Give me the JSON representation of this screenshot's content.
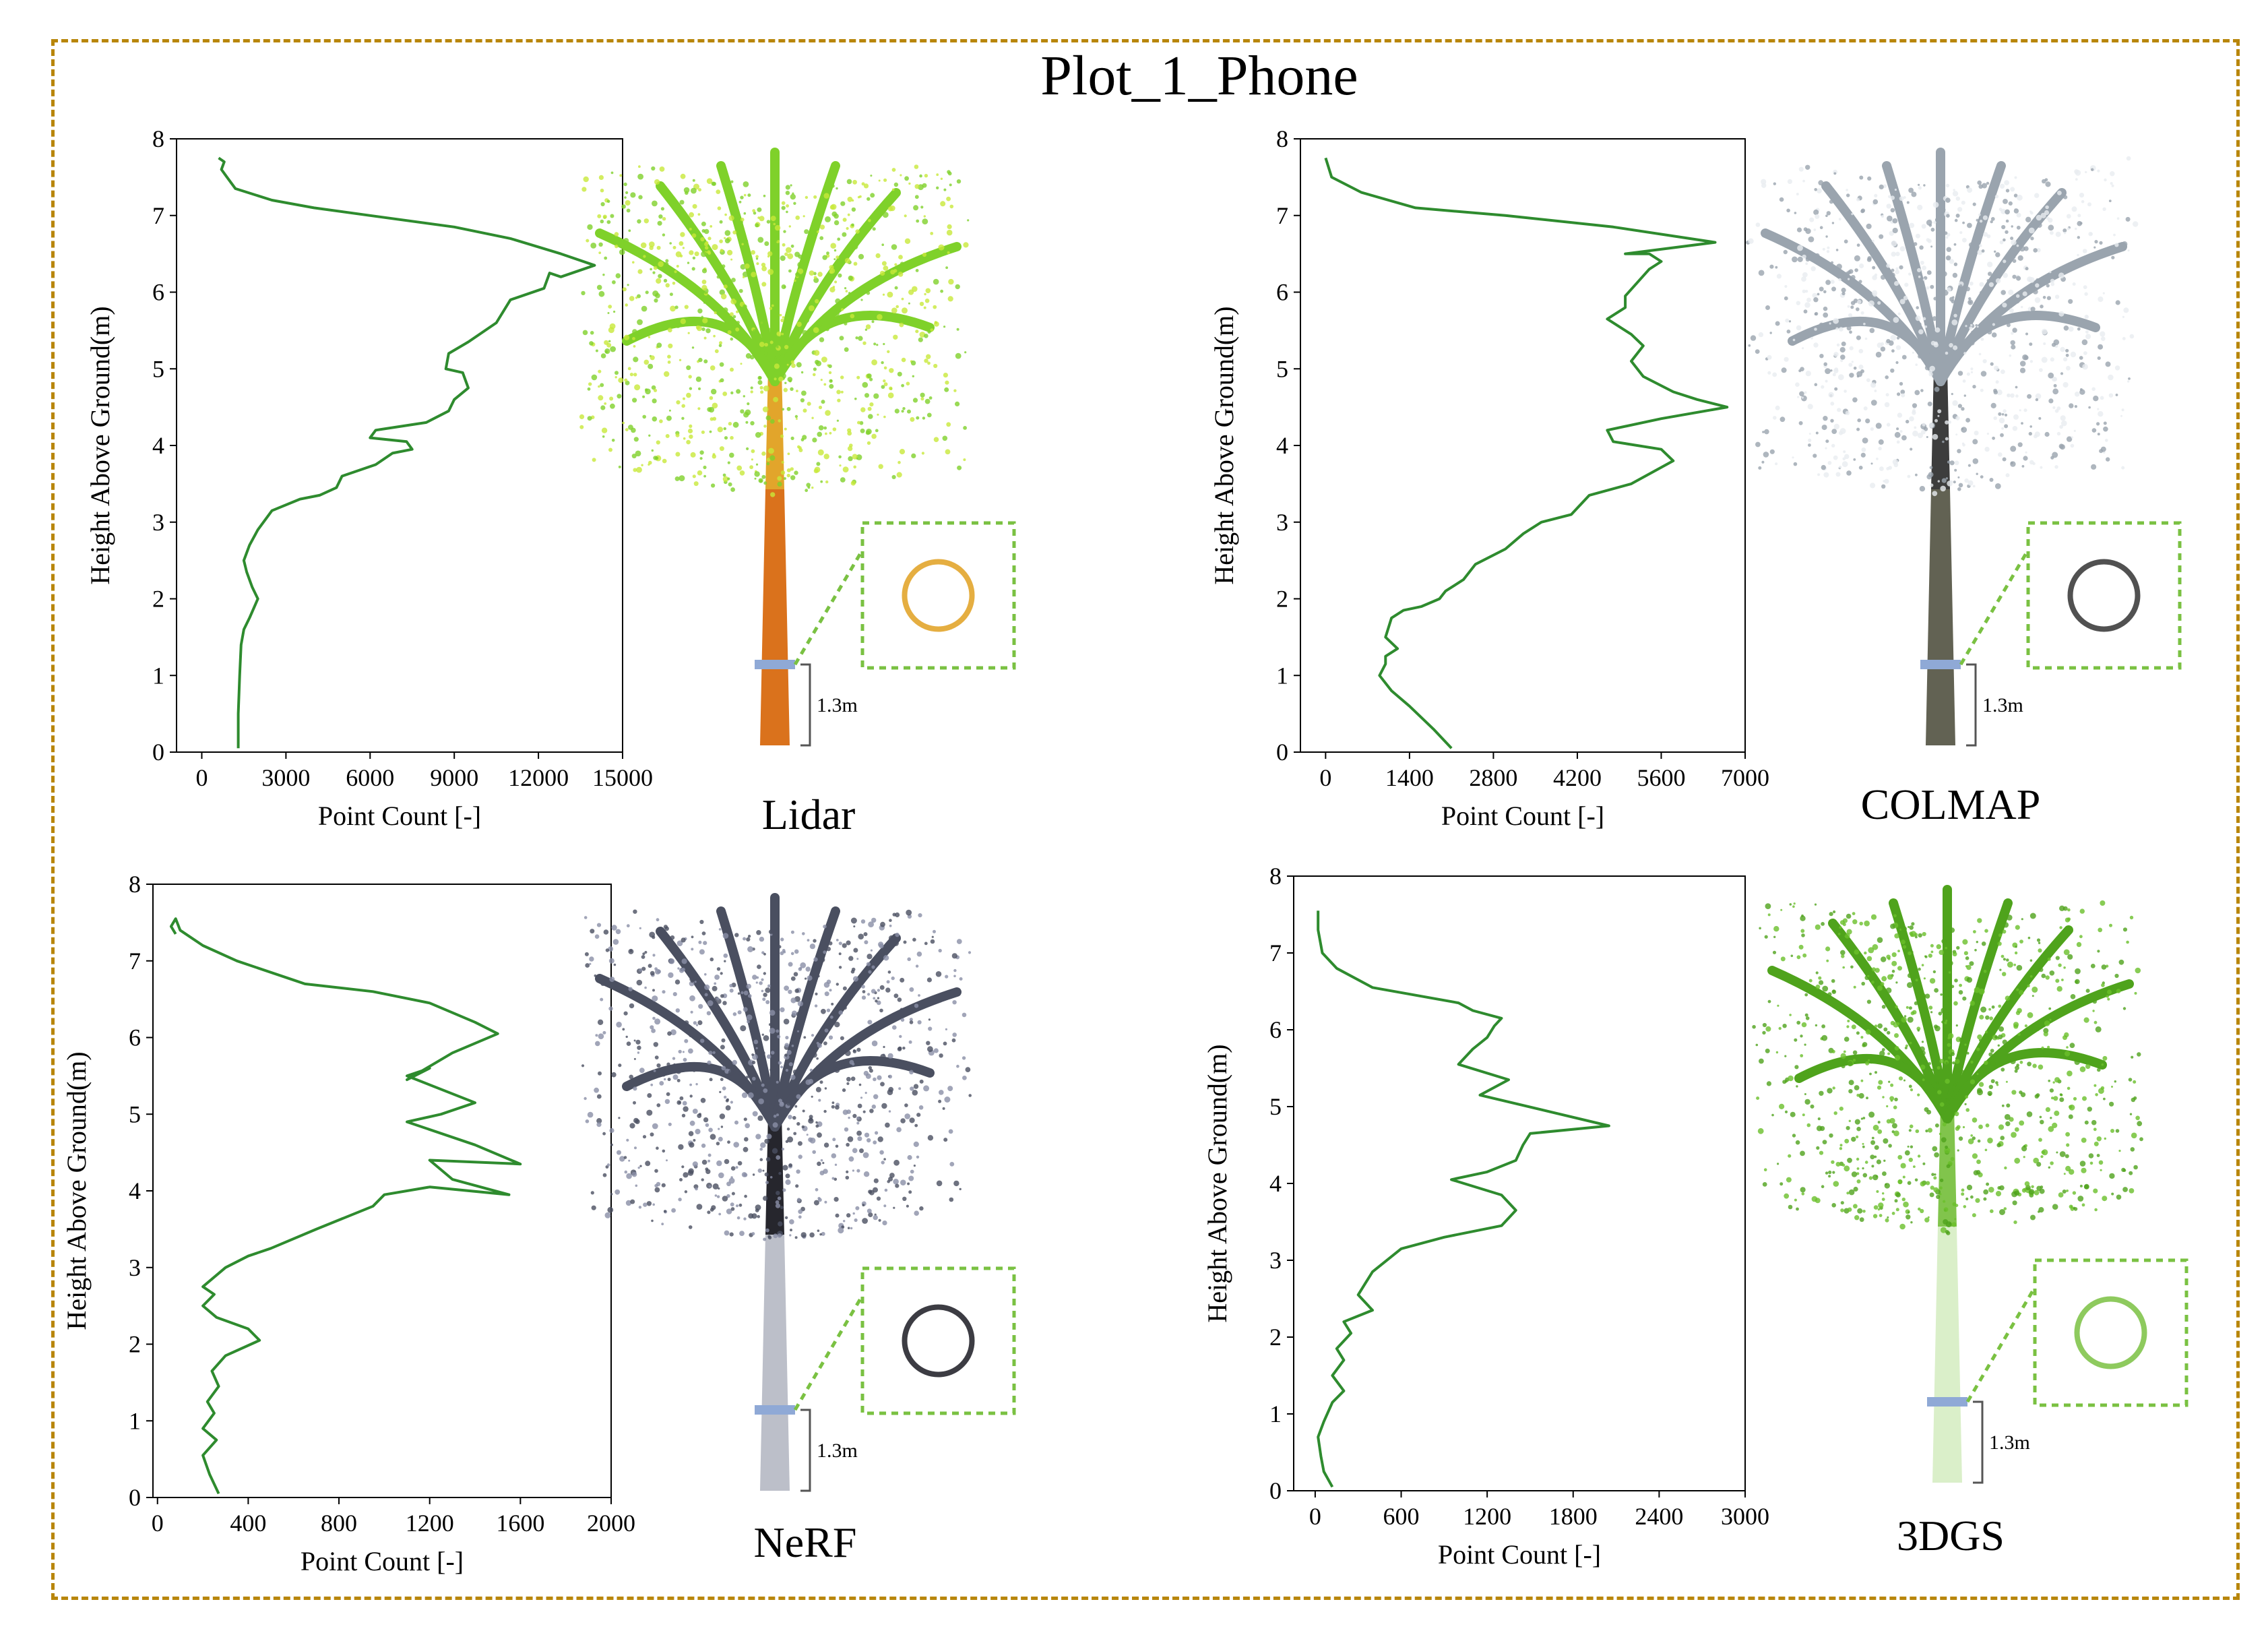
{
  "title": "Plot_1_Phone",
  "colors": {
    "frame": "#b8860b",
    "line": "#2e8b2e",
    "inset_border": "#7ac142",
    "dbh_marker": "#8fa9d6"
  },
  "scale_text": "1.3m",
  "chart_data": [
    {
      "type": "line",
      "method": "Lidar",
      "xlabel": "Point Count [-]",
      "ylabel": "Height Above Ground(m)",
      "xlim": [
        -900,
        15000
      ],
      "ylim": [
        0,
        8
      ],
      "xticks": [
        0,
        3000,
        6000,
        9000,
        12000,
        15000
      ],
      "yticks": [
        0,
        1,
        2,
        3,
        4,
        5,
        6,
        7,
        8
      ],
      "tree_colors": [
        "#c8e83a",
        "#7fd12a",
        "#e0a020",
        "#d86a10"
      ],
      "series": [
        {
          "x": [
            1300,
            1300,
            1350,
            1400,
            1500,
            1700,
            2000,
            1800,
            1600,
            1500,
            1700,
            2000,
            2500,
            3500,
            4200,
            4800,
            5000,
            6200,
            6800,
            7500,
            7300,
            6000,
            6200,
            8000,
            8800,
            9000,
            9500,
            9300,
            8700,
            8800,
            9500,
            10500,
            11000,
            12200,
            12400,
            12800,
            14000,
            12800,
            11000,
            9000,
            6000,
            4000,
            2500,
            1200,
            900,
            700,
            800,
            600
          ],
          "y": [
            0.05,
            0.5,
            1.0,
            1.4,
            1.6,
            1.75,
            2.0,
            2.15,
            2.35,
            2.5,
            2.7,
            2.9,
            3.15,
            3.3,
            3.35,
            3.45,
            3.6,
            3.75,
            3.9,
            3.95,
            4.05,
            4.1,
            4.2,
            4.3,
            4.45,
            4.6,
            4.75,
            4.95,
            5.0,
            5.2,
            5.35,
            5.6,
            5.9,
            6.05,
            6.25,
            6.2,
            6.35,
            6.5,
            6.7,
            6.85,
            7.0,
            7.1,
            7.2,
            7.35,
            7.5,
            7.6,
            7.7,
            7.75
          ]
        }
      ]
    },
    {
      "type": "line",
      "method": "COLMAP",
      "xlabel": "Point Count [-]",
      "ylabel": "Height Above Ground(m)",
      "xlim": [
        -420,
        7000
      ],
      "ylim": [
        0,
        8
      ],
      "xticks": [
        0,
        1400,
        2800,
        4200,
        5600,
        7000
      ],
      "yticks": [
        0,
        1,
        2,
        3,
        4,
        5,
        6,
        7,
        8
      ],
      "tree_colors": [
        "#e8ecf0",
        "#9aa4ae",
        "#333333",
        "#5a5a4a"
      ],
      "series": [
        {
          "x": [
            2100,
            1800,
            1400,
            1100,
            900,
            1000,
            1000,
            1200,
            1000,
            1100,
            1300,
            1600,
            1900,
            2000,
            2300,
            2500,
            3000,
            3300,
            3600,
            4100,
            4400,
            5100,
            5800,
            5600,
            4800,
            4700,
            5600,
            6700,
            6200,
            5800,
            5300,
            5100,
            5300,
            5100,
            4700,
            5000,
            5000,
            5400,
            5600,
            5400,
            5000,
            6500,
            4800,
            3000,
            1500,
            600,
            100,
            0
          ],
          "y": [
            0.05,
            0.3,
            0.6,
            0.8,
            1.0,
            1.15,
            1.25,
            1.35,
            1.5,
            1.75,
            1.85,
            1.9,
            2.0,
            2.1,
            2.25,
            2.45,
            2.65,
            2.85,
            3.0,
            3.1,
            3.35,
            3.5,
            3.8,
            3.95,
            4.05,
            4.2,
            4.35,
            4.5,
            4.6,
            4.7,
            4.9,
            5.1,
            5.3,
            5.45,
            5.65,
            5.8,
            5.95,
            6.3,
            6.4,
            6.5,
            6.5,
            6.65,
            6.85,
            7.0,
            7.1,
            7.3,
            7.5,
            7.75
          ]
        }
      ]
    },
    {
      "type": "line",
      "method": "NeRF",
      "xlabel": "Point Count [-]",
      "ylabel": "Height Above Ground(m)",
      "xlim": [
        -20,
        2000
      ],
      "ylim": [
        0,
        8
      ],
      "xticks": [
        0,
        400,
        800,
        1200,
        1600,
        2000
      ],
      "yticks": [
        0,
        1,
        2,
        3,
        4,
        5,
        6,
        7,
        8
      ],
      "tree_colors": [
        "#8a8fa6",
        "#4a4f60",
        "#1a1a22",
        "#b8bcc6"
      ],
      "series": [
        {
          "x": [
            270,
            230,
            200,
            260,
            200,
            250,
            220,
            270,
            240,
            300,
            450,
            400,
            260,
            200,
            250,
            200,
            300,
            400,
            500,
            700,
            950,
            1000,
            1200,
            1550,
            1300,
            1200,
            1600,
            1400,
            1100,
            1250,
            1400,
            1100,
            1200,
            1100,
            1300,
            1500,
            1400,
            1200,
            950,
            650,
            600,
            350,
            200,
            100,
            80,
            60,
            80
          ],
          "y": [
            0.05,
            0.3,
            0.55,
            0.75,
            0.9,
            1.1,
            1.25,
            1.45,
            1.65,
            1.85,
            2.05,
            2.2,
            2.35,
            2.5,
            2.65,
            2.75,
            3.0,
            3.15,
            3.25,
            3.5,
            3.8,
            3.95,
            4.05,
            3.95,
            4.15,
            4.4,
            4.35,
            4.6,
            4.9,
            5.0,
            5.15,
            5.5,
            5.6,
            5.45,
            5.8,
            6.05,
            6.2,
            6.45,
            6.6,
            6.7,
            6.75,
            7.0,
            7.2,
            7.4,
            7.55,
            7.45,
            7.35
          ]
        }
      ]
    },
    {
      "type": "line",
      "method": "3DGS",
      "xlabel": "Point Count [-]",
      "ylabel": "Height Above Ground(m)",
      "xlim": [
        -150,
        3000
      ],
      "ylim": [
        0,
        8
      ],
      "xticks": [
        0,
        600,
        1200,
        1800,
        2400,
        3000
      ],
      "yticks": [
        0,
        1,
        2,
        3,
        4,
        5,
        6,
        7,
        8
      ],
      "tree_colors": [
        "#6abf2a",
        "#4fa31c",
        "#7ac142",
        "#d8eec6"
      ],
      "series": [
        {
          "x": [
            120,
            60,
            40,
            20,
            60,
            120,
            200,
            120,
            200,
            150,
            250,
            200,
            400,
            300,
            350,
            400,
            600,
            900,
            1300,
            1400,
            1300,
            950,
            1200,
            1400,
            1450,
            1500,
            2050,
            1600,
            1150,
            1350,
            1000,
            1100,
            1200,
            1250,
            1300,
            1100,
            1000,
            700,
            400,
            150,
            50,
            20,
            20
          ],
          "y": [
            0.05,
            0.25,
            0.45,
            0.7,
            0.9,
            1.15,
            1.3,
            1.5,
            1.7,
            1.85,
            2.05,
            2.2,
            2.35,
            2.55,
            2.7,
            2.85,
            3.15,
            3.3,
            3.45,
            3.65,
            3.85,
            4.05,
            4.15,
            4.3,
            4.5,
            4.65,
            4.75,
            4.95,
            5.15,
            5.35,
            5.55,
            5.75,
            5.9,
            6.05,
            6.15,
            6.25,
            6.35,
            6.45,
            6.55,
            6.8,
            7.0,
            7.3,
            7.55
          ]
        }
      ]
    }
  ]
}
